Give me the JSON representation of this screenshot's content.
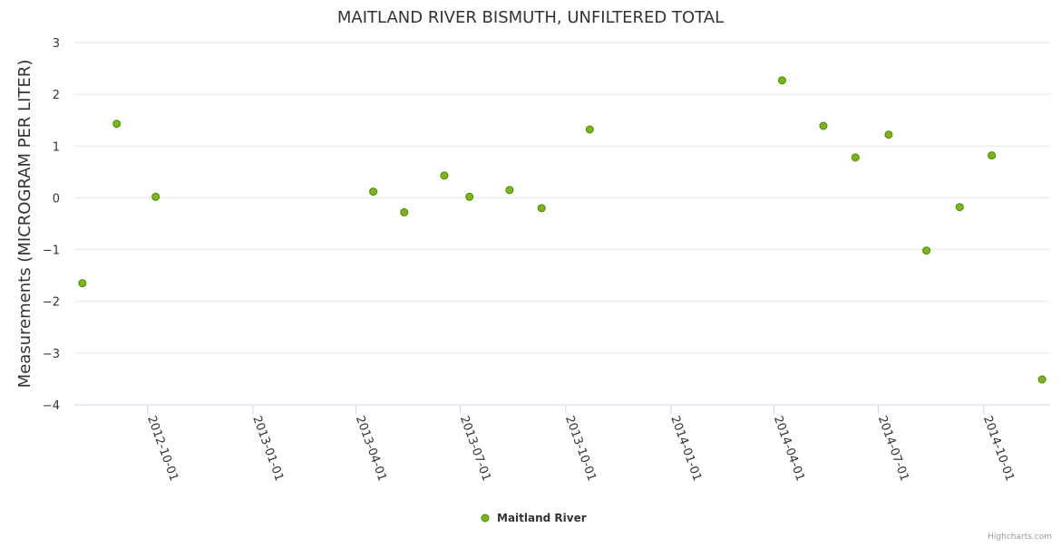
{
  "chart_data": {
    "type": "scatter",
    "title": "MAITLAND RIVER BISMUTH, UNFILTERED TOTAL",
    "xlabel": "",
    "ylabel": "Measurements (MICROGRAM PER LITER)",
    "ylim": [
      -4,
      3
    ],
    "yticks": [
      3,
      2,
      1,
      0,
      -1,
      -2,
      -3,
      -4
    ],
    "ytick_labels": [
      "3",
      "2",
      "1",
      "0",
      "−1",
      "−2",
      "−3",
      "−4"
    ],
    "xlim": [
      "2012-07-29",
      "2014-11-28"
    ],
    "xticks": [
      "2012-10-01",
      "2013-01-01",
      "2013-04-01",
      "2013-07-01",
      "2013-10-01",
      "2014-01-01",
      "2014-04-01",
      "2014-07-01",
      "2014-10-01"
    ],
    "grid": true,
    "legend": "bottom-center",
    "series": [
      {
        "name": "Maitland River",
        "color": "#7cb518",
        "border_color": "#4d8a00",
        "points": [
          {
            "x": "2012-08-05",
            "y": -1.65
          },
          {
            "x": "2012-09-04",
            "y": 1.43
          },
          {
            "x": "2012-10-08",
            "y": 0.02
          },
          {
            "x": "2013-04-16",
            "y": 0.12
          },
          {
            "x": "2013-05-13",
            "y": -0.28
          },
          {
            "x": "2013-06-17",
            "y": 0.43
          },
          {
            "x": "2013-07-09",
            "y": 0.02
          },
          {
            "x": "2013-08-13",
            "y": 0.15
          },
          {
            "x": "2013-09-10",
            "y": -0.2
          },
          {
            "x": "2013-10-22",
            "y": 1.32
          },
          {
            "x": "2014-04-08",
            "y": 2.27
          },
          {
            "x": "2014-05-14",
            "y": 1.39
          },
          {
            "x": "2014-06-11",
            "y": 0.78
          },
          {
            "x": "2014-07-10",
            "y": 1.22
          },
          {
            "x": "2014-08-12",
            "y": -1.02
          },
          {
            "x": "2014-09-10",
            "y": -0.18
          },
          {
            "x": "2014-10-08",
            "y": 0.82
          },
          {
            "x": "2014-11-21",
            "y": -3.51
          }
        ]
      }
    ]
  },
  "credits": "Highcharts.com"
}
